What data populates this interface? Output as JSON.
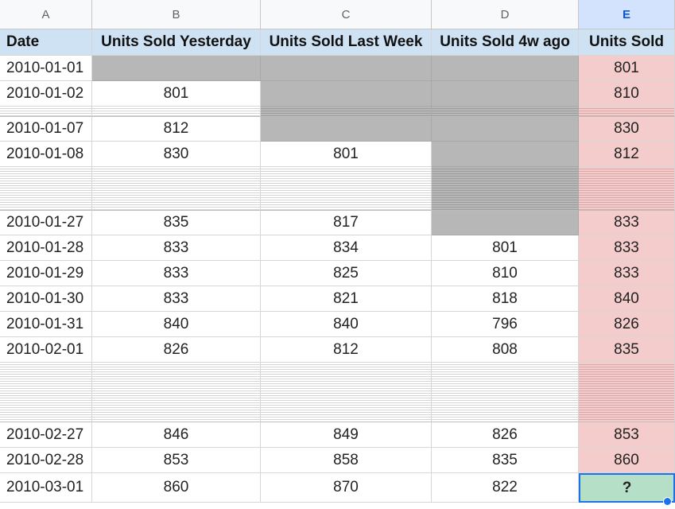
{
  "columns": [
    "A",
    "B",
    "C",
    "D",
    "E"
  ],
  "selected_column": "E",
  "headers": [
    "Date",
    "Units Sold Yesterday",
    "Units Sold Last Week",
    "Units Sold 4w ago",
    "Units Sold"
  ],
  "rows": [
    {
      "hidden": false,
      "values": [
        "2010-01-01",
        "",
        "",
        "",
        "801"
      ]
    },
    {
      "hidden": false,
      "values": [
        "2010-01-02",
        "801",
        "",
        "",
        "810"
      ]
    },
    {
      "hidden": true,
      "values": [
        "",
        "",
        "",
        "",
        ""
      ]
    },
    {
      "hidden": false,
      "values": [
        "2010-01-07",
        "812",
        "",
        "",
        "830"
      ]
    },
    {
      "hidden": false,
      "values": [
        "2010-01-08",
        "830",
        "801",
        "",
        "812"
      ]
    },
    {
      "hidden": true,
      "values": [
        "",
        "",
        "",
        "",
        ""
      ]
    },
    {
      "hidden": false,
      "values": [
        "2010-01-27",
        "835",
        "817",
        "",
        "833"
      ]
    },
    {
      "hidden": false,
      "values": [
        "2010-01-28",
        "833",
        "834",
        "801",
        "833"
      ]
    },
    {
      "hidden": false,
      "values": [
        "2010-01-29",
        "833",
        "825",
        "810",
        "833"
      ]
    },
    {
      "hidden": false,
      "values": [
        "2010-01-30",
        "833",
        "821",
        "818",
        "840"
      ]
    },
    {
      "hidden": false,
      "values": [
        "2010-01-31",
        "840",
        "840",
        "796",
        "826"
      ]
    },
    {
      "hidden": false,
      "values": [
        "2010-02-01",
        "826",
        "812",
        "808",
        "835"
      ]
    },
    {
      "hidden": true,
      "values": [
        "",
        "",
        "",
        "",
        ""
      ]
    },
    {
      "hidden": false,
      "values": [
        "2010-02-27",
        "846",
        "849",
        "826",
        "853"
      ]
    },
    {
      "hidden": false,
      "values": [
        "2010-02-28",
        "853",
        "858",
        "835",
        "860"
      ]
    },
    {
      "hidden": false,
      "values": [
        "2010-03-01",
        "860",
        "870",
        "822",
        "?"
      ]
    }
  ],
  "colors": {
    "header_fill": "#cfe2f3",
    "missing_fill": "#b7b7b7",
    "target_fill": "#f4cccc",
    "active_fill": "#b6dfc8",
    "selection_border": "#1a73e8"
  }
}
